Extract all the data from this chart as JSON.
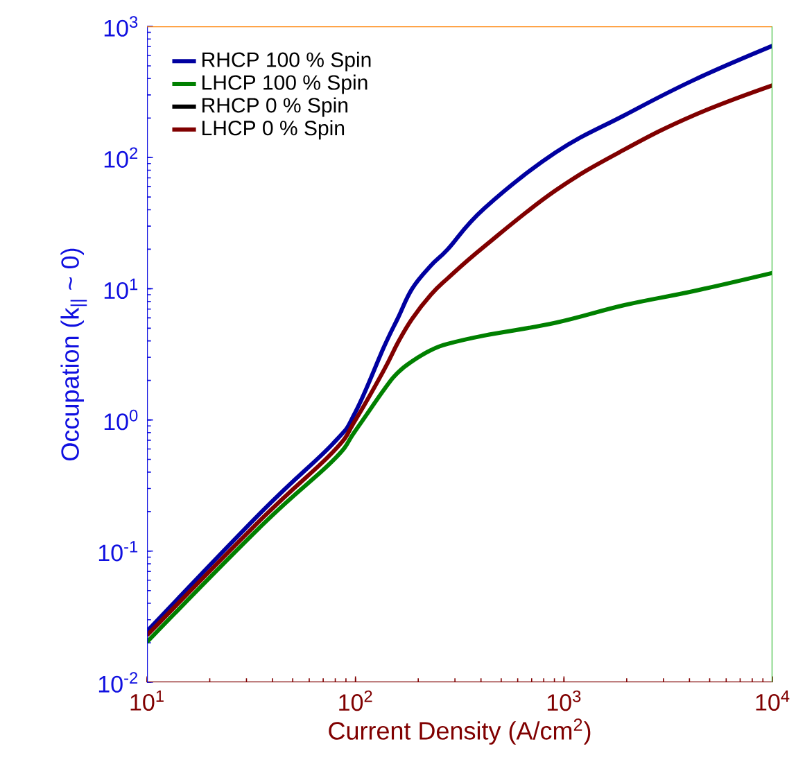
{
  "chart_data": {
    "type": "line",
    "xlabel": "Current Density (A/cm$^{2}$)",
    "ylabel": "Occupation (k$_{||}$ ~ 0)",
    "log": "xy",
    "grid": false,
    "legend": "top left",
    "marker": "none",
    "line_style": "solid",
    "xlim": [
      10,
      10000
    ],
    "ylim": [
      0.01,
      1000
    ],
    "xticks": [
      {
        "value": 10,
        "label": "10$^{1}$"
      },
      {
        "value": 100,
        "label": "10$^{2}$"
      },
      {
        "value": 1000,
        "label": "10$^{3}$"
      },
      {
        "value": 10000,
        "label": "10$^{4}$"
      }
    ],
    "yticks": [
      {
        "value": 0.01,
        "label": "10$^{-2}$"
      },
      {
        "value": 0.1,
        "label": "10$^{-1}$"
      },
      {
        "value": 1,
        "label": "10$^{0}$"
      },
      {
        "value": 10,
        "label": "10$^{1}$"
      },
      {
        "value": 100,
        "label": "10$^{2}$"
      },
      {
        "value": 1000,
        "label": "10$^{3}$"
      }
    ],
    "x": [
      10,
      36,
      78,
      100,
      137,
      160,
      187,
      230,
      277,
      415,
      910,
      1950,
      4200,
      10000
    ],
    "series": [
      {
        "name": "RHCP 100 % Spin",
        "color": "#0000a0",
        "values": [
          0.0245,
          0.204,
          0.66,
          1.15,
          3.6,
          6,
          10,
          15,
          20,
          41,
          109,
          210,
          390,
          710
        ]
      },
      {
        "name": "LHCP 100 % Spin",
        "color": "#008000",
        "values": [
          0.0203,
          0.16,
          0.49,
          0.83,
          1.7,
          2.3,
          2.8,
          3.4,
          3.8,
          4.4,
          5.5,
          7.5,
          9.6,
          13.2
        ]
      },
      {
        "name": "RHCP 0 % Spin",
        "color": "#000000",
        "values": [
          null,
          null,
          null,
          null,
          null,
          null,
          null,
          null,
          null,
          null,
          null,
          null,
          null,
          null
        ]
      },
      {
        "name": "LHCP 0 % Spin",
        "color": "#800000",
        "values": [
          0.0228,
          0.18,
          0.57,
          1.0,
          2.4,
          3.9,
          5.9,
          9,
          12,
          21,
          56,
          115,
          210,
          355
        ]
      }
    ]
  }
}
